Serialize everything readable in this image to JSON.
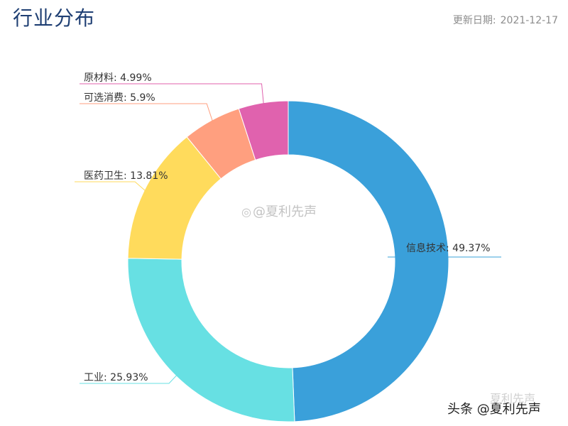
{
  "header": {
    "title": "行业分布",
    "update_label": "更新日期:",
    "update_date": "2021-12-17"
  },
  "chart_data": {
    "type": "pie",
    "variant": "donut",
    "slices": [
      {
        "label": "信息技术",
        "value": 49.37,
        "display": "49.37%",
        "color": "#3aa0da"
      },
      {
        "label": "工业",
        "value": 25.93,
        "display": "25.93%",
        "color": "#67e0e3"
      },
      {
        "label": "医药卫生",
        "value": 13.81,
        "display": "13.81%",
        "color": "#ffdb5c"
      },
      {
        "label": "可选消费",
        "value": 5.9,
        "display": "5.9%",
        "color": "#ff9f7f"
      },
      {
        "label": "原材料",
        "value": 4.99,
        "display": "4.99%",
        "color": "#e062ae"
      }
    ],
    "legend": "none"
  },
  "watermarks": {
    "center": "@夏利先声",
    "corner": "头条 @夏利先声",
    "corner_ghost": "夏利先声",
    "icon": "weibo-icon"
  }
}
